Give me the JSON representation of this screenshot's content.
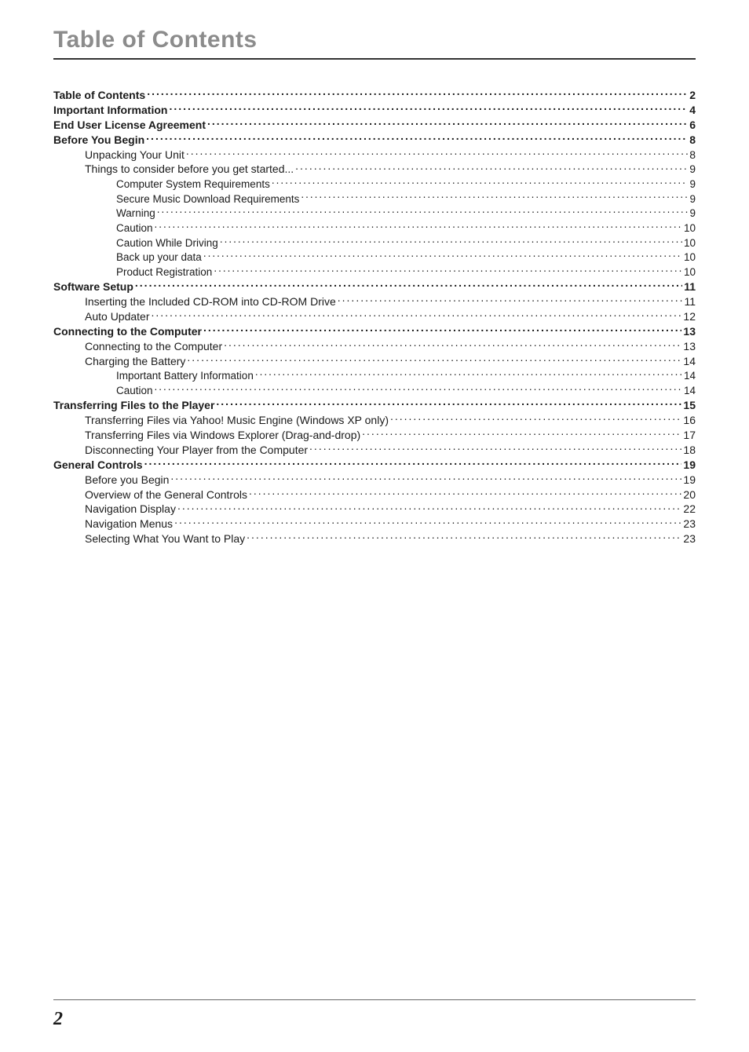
{
  "colors": {
    "title": "#8c8c8c",
    "rule": "#333333",
    "text": "#1a1a1a",
    "footer_rule": "#666666"
  },
  "sizes": {
    "title_pt": 30,
    "row_pt_l0": 14,
    "row_pt_l1": 14,
    "row_pt_l2": 13.5,
    "line_height": 1.35,
    "footer_num_pt": 24
  },
  "title": "Table of Contents",
  "footer_page": "2",
  "toc": [
    {
      "level": 0,
      "label": "Table of Contents",
      "page": "2"
    },
    {
      "level": 0,
      "label": "Important Information",
      "page": "4"
    },
    {
      "level": 0,
      "label": "End User License Agreement",
      "page": "6"
    },
    {
      "level": 0,
      "label": "Before You Begin",
      "page": "8"
    },
    {
      "level": 1,
      "label": "Unpacking Your Unit",
      "page": "8"
    },
    {
      "level": 1,
      "label": "Things to consider before you get started...",
      "page": "9"
    },
    {
      "level": 2,
      "label": "Computer System Requirements",
      "page": "9"
    },
    {
      "level": 2,
      "label": "Secure Music Download Requirements",
      "page": "9"
    },
    {
      "level": 2,
      "label": "Warning",
      "page": "9"
    },
    {
      "level": 2,
      "label": "Caution",
      "page": "10"
    },
    {
      "level": 2,
      "label": "Caution While Driving",
      "page": "10"
    },
    {
      "level": 2,
      "label": "Back up your data",
      "page": "10"
    },
    {
      "level": 2,
      "label": "Product Registration",
      "page": "10"
    },
    {
      "level": 0,
      "label": "Software Setup",
      "page": "11"
    },
    {
      "level": 1,
      "label": "Inserting the Included CD-ROM into CD-ROM Drive",
      "page": "11"
    },
    {
      "level": 1,
      "label": "Auto Updater",
      "page": "12"
    },
    {
      "level": 0,
      "label": "Connecting to the Computer",
      "page": "13"
    },
    {
      "level": 1,
      "label": "Connecting to the Computer",
      "page": "13"
    },
    {
      "level": 1,
      "label": "Charging the Battery",
      "page": "14"
    },
    {
      "level": 2,
      "label": "Important Battery Information",
      "page": "14"
    },
    {
      "level": 2,
      "label": "Caution",
      "page": "14"
    },
    {
      "level": 0,
      "label": "Transferring Files to the Player",
      "page": "15"
    },
    {
      "level": 1,
      "label": "Transferring Files via Yahoo! Music Engine (Windows XP only)",
      "page": "16"
    },
    {
      "level": 1,
      "label": "Transferring Files via Windows Explorer (Drag-and-drop)",
      "page": "17"
    },
    {
      "level": 1,
      "label": "Disconnecting Your Player from the Computer",
      "page": "18"
    },
    {
      "level": 0,
      "label": "General Controls",
      "page": "19"
    },
    {
      "level": 1,
      "label": "Before you Begin",
      "page": "19"
    },
    {
      "level": 1,
      "label": "Overview of the General Controls",
      "page": "20"
    },
    {
      "level": 1,
      "label": "Navigation Display",
      "page": "22"
    },
    {
      "level": 1,
      "label": "Navigation Menus",
      "page": "23"
    },
    {
      "level": 1,
      "label": "Selecting What You Want to Play",
      "page": "23"
    }
  ]
}
